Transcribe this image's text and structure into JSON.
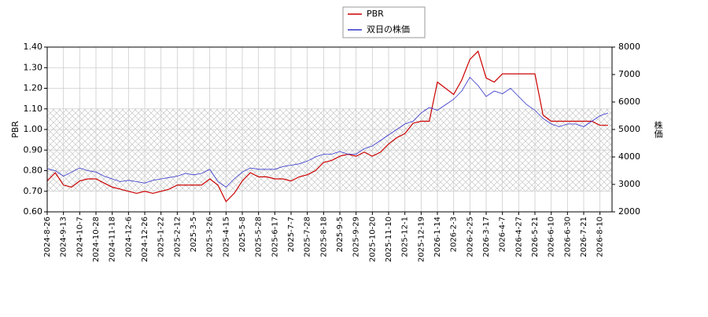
{
  "chart_data": {
    "type": "line",
    "categories": [
      "2024-8-26",
      null,
      "2024-9-13",
      null,
      "2024-10-7",
      null,
      "2024-10-28",
      null,
      "2024-11-18",
      null,
      "2024-12-6",
      null,
      "2024-12-26",
      null,
      "2025-1-22",
      null,
      "2025-2-12",
      null,
      "2025-3-5",
      null,
      "2025-3-26",
      null,
      "2025-4-15",
      null,
      "2025-5-8",
      null,
      "2025-5-28",
      null,
      "2025-6-17",
      null,
      "2025-7-7",
      null,
      "2025-7-28",
      null,
      "2025-8-18",
      null,
      "2025-9-5",
      null,
      "2025-9-29",
      null,
      "2025-10-20",
      null,
      "2025-11-10",
      null,
      "2025-12-1",
      null,
      "2025-12-19",
      null,
      "2026-1-14",
      null,
      "2026-2-3",
      null,
      "2026-2-25",
      null,
      "2026-3-17",
      null,
      "2026-4-7",
      null,
      "2026-4-27",
      null,
      "2026-5-21",
      null,
      "2026-6-10",
      null,
      "2026-6-30",
      null,
      "2026-7-21",
      null,
      "2026-8-10",
      null
    ],
    "series": [
      {
        "name": "PBR",
        "color": "#cc0000",
        "axis": "y",
        "values": [
          0.75,
          0.79,
          0.73,
          0.72,
          0.75,
          0.76,
          0.76,
          0.74,
          0.72,
          0.71,
          0.7,
          0.69,
          0.7,
          0.69,
          0.7,
          0.71,
          0.73,
          0.73,
          0.73,
          0.73,
          0.76,
          0.73,
          0.65,
          0.69,
          0.75,
          0.79,
          0.77,
          0.77,
          0.76,
          0.76,
          0.75,
          0.77,
          0.78,
          0.8,
          0.84,
          0.85,
          0.87,
          0.88,
          0.87,
          0.89,
          0.87,
          0.89,
          0.93,
          0.96,
          0.98,
          1.03,
          1.04,
          1.04,
          1.23,
          1.2,
          1.17,
          1.24,
          1.34,
          1.38,
          1.25,
          1.23,
          1.27,
          1.27,
          1.27,
          1.27,
          1.27,
          1.07,
          1.04,
          1.04,
          1.04,
          1.04,
          1.04,
          1.04,
          1.02,
          1.02
        ]
      },
      {
        "name": "双日の株価",
        "color": "#3333cc",
        "axis": "y2",
        "values": [
          3570,
          3500,
          3300,
          3450,
          3600,
          3500,
          3450,
          3300,
          3200,
          3100,
          3150,
          3100,
          3050,
          3150,
          3200,
          3250,
          3300,
          3400,
          3350,
          3400,
          3550,
          3100,
          2900,
          3200,
          3450,
          3600,
          3550,
          3550,
          3550,
          3650,
          3700,
          3750,
          3850,
          4000,
          4100,
          4100,
          4200,
          4100,
          4100,
          4300,
          4400,
          4600,
          4800,
          5000,
          5200,
          5300,
          5600,
          5800,
          5700,
          5900,
          6100,
          6400,
          6900,
          6600,
          6200,
          6400,
          6300,
          6500,
          6200,
          5900,
          5700,
          5400,
          5200,
          5100,
          5200,
          5200,
          5100,
          5300,
          5500,
          5600
        ]
      }
    ],
    "ylabel": "PBR",
    "y2label": "株価",
    "ylim": [
      0.6,
      1.4
    ],
    "yticks": [
      {
        "value": 0.6,
        "label": "0.60"
      },
      {
        "value": 0.7,
        "label": "0.70"
      },
      {
        "value": 0.8,
        "label": "0.80"
      },
      {
        "value": 0.9,
        "label": "0.90"
      },
      {
        "value": 1.0,
        "label": "1.00"
      },
      {
        "value": 1.1,
        "label": "1.10"
      },
      {
        "value": 1.2,
        "label": "1.20"
      },
      {
        "value": 1.3,
        "label": "1.30"
      },
      {
        "value": 1.4,
        "label": "1.40"
      }
    ],
    "y2lim": [
      2000,
      8000
    ],
    "y2ticks": [
      2000,
      3000,
      4000,
      5000,
      6000,
      7000,
      8000
    ],
    "band": [
      0.7,
      1.1
    ],
    "grid": true,
    "legend": "top"
  }
}
